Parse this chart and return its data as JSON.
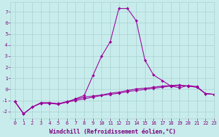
{
  "x": [
    0,
    1,
    2,
    3,
    4,
    5,
    6,
    7,
    8,
    9,
    10,
    11,
    12,
    13,
    14,
    15,
    16,
    17,
    18,
    19,
    20,
    21,
    22,
    23
  ],
  "line1": [
    -1.1,
    -2.2,
    -1.6,
    -1.2,
    -1.2,
    -1.3,
    -1.15,
    -0.85,
    -0.55,
    1.25,
    3.0,
    4.3,
    7.3,
    7.3,
    6.2,
    2.65,
    1.3,
    0.8,
    0.3,
    0.15,
    0.35,
    0.25,
    -0.38,
    -0.45
  ],
  "line2": [
    -1.1,
    -2.2,
    -1.6,
    -1.25,
    -1.25,
    -1.3,
    -1.1,
    -0.9,
    -0.7,
    -0.6,
    -0.5,
    -0.35,
    -0.25,
    -0.1,
    0.05,
    0.1,
    0.2,
    0.3,
    0.35,
    0.4,
    0.3,
    0.2,
    -0.38,
    -0.45
  ],
  "line3": [
    -1.1,
    -2.2,
    -1.6,
    -1.25,
    -1.25,
    -1.35,
    -1.15,
    -1.0,
    -0.85,
    -0.7,
    -0.55,
    -0.45,
    -0.35,
    -0.2,
    -0.1,
    0.0,
    0.1,
    0.2,
    0.3,
    0.35,
    0.3,
    0.2,
    -0.38,
    -0.45
  ],
  "line_color": "#9b009b",
  "bg_color": "#c8ecec",
  "grid_color": "#a8d0d0",
  "axis_color": "#7b007b",
  "xlabel": "Windchill (Refroidissement éolien,°C)",
  "ylim": [
    -2.6,
    7.9
  ],
  "xlim": [
    -0.5,
    23
  ],
  "yticks": [
    -2,
    -1,
    0,
    1,
    2,
    3,
    4,
    5,
    6,
    7
  ],
  "xticks": [
    0,
    1,
    2,
    3,
    4,
    5,
    6,
    7,
    8,
    9,
    10,
    11,
    12,
    13,
    14,
    15,
    16,
    17,
    18,
    19,
    20,
    21,
    22,
    23
  ],
  "xtick_labels": [
    "0",
    "1",
    "2",
    "3",
    "4",
    "5",
    "6",
    "7",
    "8",
    "9",
    "10",
    "11",
    "12",
    "13",
    "14",
    "15",
    "16",
    "17",
    "18",
    "19",
    "20",
    "21",
    "22",
    "23"
  ],
  "marker": "D",
  "markersize": 2.0,
  "linewidth": 0.8,
  "tick_fontsize": 5.0,
  "xlabel_fontsize": 6.0
}
